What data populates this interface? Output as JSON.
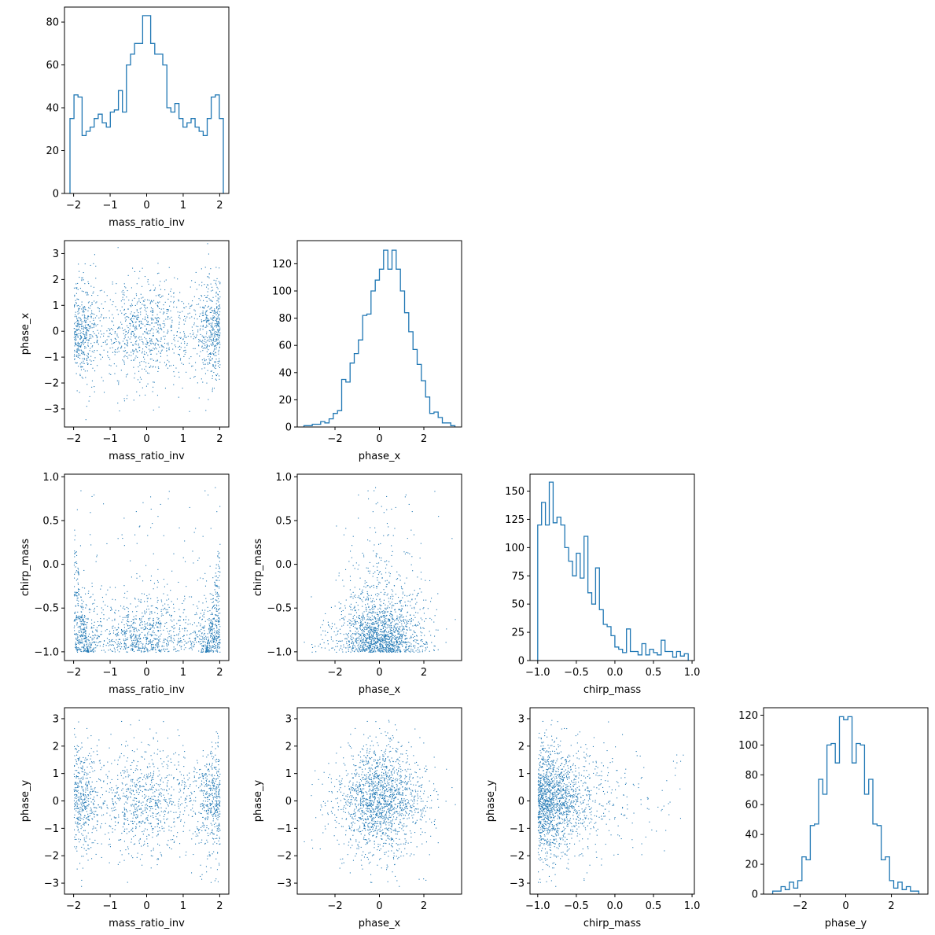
{
  "colors": {
    "series": "#1f77b4",
    "axes": "#000000",
    "background": "#ffffff"
  },
  "chart_data": [
    {
      "id": "hist_mass_ratio_inv",
      "type": "bar",
      "style": "step-histogram",
      "xlabel": "mass_ratio_inv",
      "ylabel": "",
      "xlim": [
        -2.25,
        2.25
      ],
      "ylim": [
        0,
        87
      ],
      "xticks": [
        -2,
        -1,
        0,
        1,
        2
      ],
      "xticklabels": [
        "−2",
        "−1",
        "0",
        "1",
        "2"
      ],
      "yticks": [
        0,
        20,
        40,
        60,
        80
      ],
      "yticklabels": [
        "0",
        "20",
        "40",
        "60",
        "80"
      ],
      "bin_range": [
        -2.1,
        2.1
      ],
      "counts": [
        35,
        46,
        45,
        27,
        29,
        31,
        35,
        37,
        33,
        31,
        38,
        39,
        48,
        38,
        60,
        65,
        70,
        70,
        83,
        83,
        70,
        65,
        65,
        60,
        40,
        38,
        42,
        35,
        31,
        33,
        35,
        31,
        29,
        27,
        35,
        45,
        46,
        35
      ]
    },
    {
      "id": "hist_phase_x",
      "type": "bar",
      "style": "step-histogram",
      "xlabel": "phase_x",
      "ylabel": "",
      "xlim": [
        -3.7,
        3.7
      ],
      "ylim": [
        0,
        137
      ],
      "xticks": [
        -2,
        0,
        2
      ],
      "xticklabels": [
        "−2",
        "0",
        "2"
      ],
      "yticks": [
        0,
        20,
        40,
        60,
        80,
        100,
        120
      ],
      "yticklabels": [
        "0",
        "20",
        "40",
        "60",
        "80",
        "100",
        "120"
      ],
      "bin_range": [
        -3.4,
        3.4
      ],
      "counts": [
        1,
        1,
        2,
        2,
        4,
        3,
        6,
        10,
        12,
        35,
        33,
        47,
        54,
        64,
        82,
        83,
        100,
        108,
        116,
        130,
        116,
        130,
        116,
        100,
        84,
        70,
        57,
        46,
        34,
        22,
        10,
        11,
        7,
        3,
        3,
        1
      ]
    },
    {
      "id": "hist_chirp_mass",
      "type": "bar",
      "style": "step-histogram",
      "xlabel": "chirp_mass",
      "ylabel": "",
      "xlim": [
        -1.1,
        1.03
      ],
      "ylim": [
        0,
        165
      ],
      "xticks": [
        -1.0,
        -0.5,
        0.0,
        0.5,
        1.0
      ],
      "xticklabels": [
        "−1.0",
        "−0.5",
        "0.0",
        "0.5",
        "1.0"
      ],
      "yticks": [
        0,
        25,
        50,
        75,
        100,
        125,
        150
      ],
      "yticklabels": [
        "0",
        "25",
        "50",
        "75",
        "100",
        "125",
        "150"
      ],
      "bin_range": [
        -1.0,
        0.95
      ],
      "counts": [
        120,
        140,
        120,
        158,
        122,
        127,
        120,
        100,
        88,
        75,
        95,
        73,
        110,
        60,
        50,
        82,
        45,
        32,
        30,
        22,
        12,
        10,
        7,
        28,
        8,
        8,
        5,
        15,
        5,
        10,
        7,
        5,
        18,
        8,
        8,
        3,
        8,
        4,
        6
      ]
    },
    {
      "id": "hist_phase_y",
      "type": "bar",
      "style": "step-histogram",
      "xlabel": "phase_y",
      "ylabel": "",
      "xlim": [
        -3.6,
        3.6
      ],
      "ylim": [
        0,
        125
      ],
      "xticks": [
        -2,
        0,
        2
      ],
      "xticklabels": [
        "−2",
        "0",
        "2"
      ],
      "yticks": [
        0,
        20,
        40,
        60,
        80,
        100,
        120
      ],
      "yticklabels": [
        "0",
        "20",
        "40",
        "60",
        "80",
        "100",
        "120"
      ],
      "bin_range": [
        -3.2,
        3.2
      ],
      "counts": [
        2,
        2,
        5,
        3,
        8,
        4,
        9,
        25,
        23,
        46,
        47,
        77,
        67,
        100,
        101,
        88,
        119,
        117,
        119,
        88,
        101,
        100,
        67,
        77,
        47,
        46,
        23,
        25,
        9,
        4,
        8,
        3,
        5,
        2,
        2
      ]
    },
    {
      "id": "scatter_mass_ratio_inv_phase_x",
      "type": "scatter",
      "xlabel": "mass_ratio_inv",
      "ylabel": "phase_x",
      "xlim": [
        -2.25,
        2.25
      ],
      "ylim": [
        -3.7,
        3.5
      ],
      "xticks": [
        -2,
        -1,
        0,
        1,
        2
      ],
      "xticklabels": [
        "−2",
        "−1",
        "0",
        "1",
        "2"
      ],
      "yticks": [
        -3,
        -2,
        -1,
        0,
        1,
        2,
        3
      ],
      "yticklabels": [
        "−3",
        "−2",
        "−1",
        "0",
        "1",
        "2",
        "3"
      ],
      "x_var": "mass_ratio_inv",
      "y_var": "phase_x"
    },
    {
      "id": "scatter_mass_ratio_inv_chirp_mass",
      "type": "scatter",
      "xlabel": "mass_ratio_inv",
      "ylabel": "chirp_mass",
      "xlim": [
        -2.25,
        2.25
      ],
      "ylim": [
        -1.1,
        1.03
      ],
      "xticks": [
        -2,
        -1,
        0,
        1,
        2
      ],
      "xticklabels": [
        "−2",
        "−1",
        "0",
        "1",
        "2"
      ],
      "yticks": [
        -1.0,
        -0.5,
        0.0,
        0.5,
        1.0
      ],
      "yticklabels": [
        "−1.0",
        "−0.5",
        "0.0",
        "0.5",
        "1.0"
      ],
      "x_var": "mass_ratio_inv",
      "y_var": "chirp_mass"
    },
    {
      "id": "scatter_phase_x_chirp_mass",
      "type": "scatter",
      "xlabel": "phase_x",
      "ylabel": "chirp_mass",
      "xlim": [
        -3.7,
        3.7
      ],
      "ylim": [
        -1.1,
        1.03
      ],
      "xticks": [
        -2,
        0,
        2
      ],
      "xticklabels": [
        "−2",
        "0",
        "2"
      ],
      "yticks": [
        -1.0,
        -0.5,
        0.0,
        0.5,
        1.0
      ],
      "yticklabels": [
        "−1.0",
        "−0.5",
        "0.0",
        "0.5",
        "1.0"
      ],
      "x_var": "phase_x",
      "y_var": "chirp_mass"
    },
    {
      "id": "scatter_mass_ratio_inv_phase_y",
      "type": "scatter",
      "xlabel": "mass_ratio_inv",
      "ylabel": "phase_y",
      "xlim": [
        -2.25,
        2.25
      ],
      "ylim": [
        -3.4,
        3.4
      ],
      "xticks": [
        -2,
        -1,
        0,
        1,
        2
      ],
      "xticklabels": [
        "−2",
        "−1",
        "0",
        "1",
        "2"
      ],
      "yticks": [
        -3,
        -2,
        -1,
        0,
        1,
        2,
        3
      ],
      "yticklabels": [
        "−3",
        "−2",
        "−1",
        "0",
        "1",
        "2",
        "3"
      ],
      "x_var": "mass_ratio_inv",
      "y_var": "phase_y"
    },
    {
      "id": "scatter_phase_x_phase_y",
      "type": "scatter",
      "xlabel": "phase_x",
      "ylabel": "phase_y",
      "xlim": [
        -3.7,
        3.7
      ],
      "ylim": [
        -3.4,
        3.4
      ],
      "xticks": [
        -2,
        0,
        2
      ],
      "xticklabels": [
        "−2",
        "0",
        "2"
      ],
      "yticks": [
        -3,
        -2,
        -1,
        0,
        1,
        2,
        3
      ],
      "yticklabels": [
        "−3",
        "−2",
        "−1",
        "0",
        "1",
        "2",
        "3"
      ],
      "x_var": "phase_x",
      "y_var": "phase_y"
    },
    {
      "id": "scatter_chirp_mass_phase_y",
      "type": "scatter",
      "xlabel": "chirp_mass",
      "ylabel": "phase_y",
      "xlim": [
        -1.1,
        1.03
      ],
      "ylim": [
        -3.4,
        3.4
      ],
      "xticks": [
        -1.0,
        -0.5,
        0.0,
        0.5,
        1.0
      ],
      "xticklabels": [
        "−1.0",
        "−0.5",
        "0.0",
        "0.5",
        "1.0"
      ],
      "yticks": [
        -3,
        -2,
        -1,
        0,
        1,
        2,
        3
      ],
      "yticklabels": [
        "−3",
        "−2",
        "−1",
        "0",
        "1",
        "2",
        "3"
      ],
      "x_var": "chirp_mass",
      "y_var": "phase_y"
    }
  ],
  "scatter_samples": {
    "count": 1700,
    "distributions": {
      "mass_ratio_inv": "trimodal on [-2.1, 2.1] with peaks at -2, 0, 2",
      "phase_x": "normal, mean 0, sd 1",
      "chirp_mass": "mostly near -1 to -0.2; U-shaped branch up to 0.95 near mass_ratio_inv = ±2",
      "phase_y": "normal, mean 0, sd 1"
    }
  }
}
